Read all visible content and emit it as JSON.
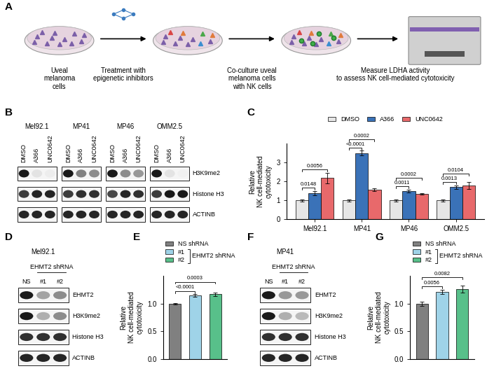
{
  "schematic": {
    "panel_label": "A",
    "steps": [
      "Uveal\nmelanoma\ncells",
      "Treatment with\nepigenetic inhibitors",
      "Co-culture uveal\nmelanoma cells\nwith NK cells",
      "Measure LDHA activity\nto assess NK cell-mediated cytotoxicity"
    ]
  },
  "blots": [
    {
      "panel_label": "B",
      "rows": [
        "H3K9me2",
        "Histone H3",
        "ACTINB"
      ],
      "groups": [
        {
          "name": "Mel92.1",
          "lanes": [
            "DMSO",
            "A366",
            "UNC0642"
          ],
          "band_intensity": [
            [
              1,
              0.12,
              0.08
            ],
            [
              0.85,
              0.95,
              0.95
            ],
            [
              0.95,
              0.95,
              0.95
            ]
          ]
        },
        {
          "name": "MP41",
          "lanes": [
            "DMSO",
            "A366",
            "UNC0642"
          ],
          "band_intensity": [
            [
              1,
              0.55,
              0.5
            ],
            [
              0.85,
              0.9,
              0.9
            ],
            [
              0.95,
              0.95,
              0.95
            ]
          ]
        },
        {
          "name": "MP46",
          "lanes": [
            "DMSO",
            "A366",
            "UNC0642"
          ],
          "band_intensity": [
            [
              1,
              0.5,
              0.45
            ],
            [
              0.8,
              0.95,
              0.9
            ],
            [
              0.95,
              0.95,
              0.95
            ]
          ]
        },
        {
          "name": "OMM2.5",
          "lanes": [
            "DMSO",
            "A366",
            "UNC0642"
          ],
          "band_intensity": [
            [
              1,
              0.12,
              0.06
            ],
            [
              0.85,
              1,
              1
            ],
            [
              0.95,
              0.95,
              0.95
            ]
          ]
        }
      ]
    },
    {
      "panel_label": "D",
      "rows": [
        "EHMT2",
        "H3K9me2",
        "Histone H3",
        "ACTINB"
      ],
      "lane_header": "EHMT2 shRNA",
      "groups": [
        {
          "name": "Mel92.1",
          "lanes": [
            "NS",
            "#1",
            "#2"
          ],
          "band_intensity": [
            [
              1,
              0.4,
              0.5
            ],
            [
              1,
              0.35,
              0.5
            ],
            [
              0.9,
              0.9,
              0.9
            ],
            [
              0.95,
              0.95,
              0.95
            ]
          ]
        }
      ]
    },
    {
      "panel_label": "F",
      "rows": [
        "EHMT2",
        "H3K9me2",
        "Histone H3",
        "ACTINB"
      ],
      "lane_header": "EHMT2 shRNA",
      "groups": [
        {
          "name": "MP41",
          "lanes": [
            "NS",
            "#1",
            "#2"
          ],
          "band_intensity": [
            [
              1,
              0.45,
              0.45
            ],
            [
              1,
              0.35,
              0.3
            ],
            [
              0.9,
              0.9,
              0.9
            ],
            [
              0.95,
              0.95,
              0.95
            ]
          ]
        }
      ]
    }
  ],
  "chart_data": [
    {
      "panel_label": "C",
      "type": "bar",
      "categories": [
        "Mel92.1",
        "MP41",
        "MP46",
        "OMM2.5"
      ],
      "series": [
        {
          "name": "DMSO",
          "color": "#e6e6e6",
          "values": [
            1.0,
            1.0,
            1.0,
            1.0
          ],
          "errors": [
            0.05,
            0.05,
            0.06,
            0.05
          ]
        },
        {
          "name": "A366",
          "color": "#3a72b8",
          "values": [
            1.38,
            3.5,
            1.5,
            1.7
          ],
          "errors": [
            0.12,
            0.12,
            0.08,
            0.1
          ]
        },
        {
          "name": "UNC0642",
          "color": "#e8696b",
          "values": [
            2.18,
            1.55,
            1.35,
            1.78
          ],
          "errors": [
            0.28,
            0.07,
            0.03,
            0.18
          ]
        }
      ],
      "ylabel": "Relative\nNK cell-mediated\ncytotoxicity",
      "ylim": [
        0,
        4
      ],
      "yticks": [
        0,
        1,
        2,
        3
      ],
      "legend": "lower center",
      "annotations": [
        {
          "category": "Mel92.1",
          "from": "DMSO",
          "to": "A366",
          "label": "0.0148"
        },
        {
          "category": "Mel92.1",
          "from": "DMSO",
          "to": "UNC0642",
          "label": "0.0056"
        },
        {
          "category": "MP41",
          "from": "DMSO",
          "to": "A366",
          "label": "<0.0001"
        },
        {
          "category": "MP41",
          "from": "DMSO",
          "to": "UNC0642",
          "label": "0.0002"
        },
        {
          "category": "MP46",
          "from": "DMSO",
          "to": "A366",
          "label": "0.0011"
        },
        {
          "category": "MP46",
          "from": "DMSO",
          "to": "UNC0642",
          "label": "0.0002"
        },
        {
          "category": "OMM2.5",
          "from": "DMSO",
          "to": "A366",
          "label": "0.0013"
        },
        {
          "category": "OMM2.5",
          "from": "DMSO",
          "to": "UNC0642",
          "label": "0.0104"
        }
      ]
    },
    {
      "panel_label": "E",
      "type": "bar",
      "categories": [
        "NS shRNA",
        "#1",
        "#2"
      ],
      "values": [
        1.0,
        1.15,
        1.17
      ],
      "errors": [
        0.01,
        0.02,
        0.03
      ],
      "colors": [
        "#808080",
        "#9fd3e8",
        "#58c08a"
      ],
      "legend_note": "EHMT2 shRNA",
      "ylabel": "Relative\nNK cell-mediated\ncytotoxicity",
      "ylim": [
        0,
        1.5
      ],
      "yticks": [
        {
          "value": 0,
          "label": "0.0"
        },
        0.5,
        {
          "value": 1,
          "label": "1.0"
        }
      ],
      "tick_labels": "y",
      "legend": "lower left",
      "annotations": [
        {
          "from": "NS shRNA",
          "to": "#1",
          "label": "<0.0001"
        },
        {
          "from": "NS shRNA",
          "to": "#2",
          "label": "0.0003"
        }
      ]
    },
    {
      "panel_label": "G",
      "type": "bar",
      "categories": [
        "NS shRNA",
        "#1",
        "#2"
      ],
      "values": [
        1.0,
        1.21,
        1.26
      ],
      "errors": [
        0.04,
        0.04,
        0.06
      ],
      "colors": [
        "#808080",
        "#9fd3e8",
        "#58c08a"
      ],
      "legend_note": "EHMT2 shRNA",
      "ylabel": "Relative\nNK cell-mediated\ncytotoxicity",
      "ylim": [
        0,
        1.5
      ],
      "yticks": [
        {
          "value": 0,
          "label": "0.0"
        },
        0.5,
        {
          "value": 1,
          "label": "1.0"
        }
      ],
      "tick_labels": "y",
      "legend": "lower left",
      "annotations": [
        {
          "from": "NS shRNA",
          "to": "#1",
          "label": "0.0056"
        },
        {
          "from": "NS shRNA",
          "to": "#2",
          "label": "0.0082"
        }
      ]
    }
  ]
}
